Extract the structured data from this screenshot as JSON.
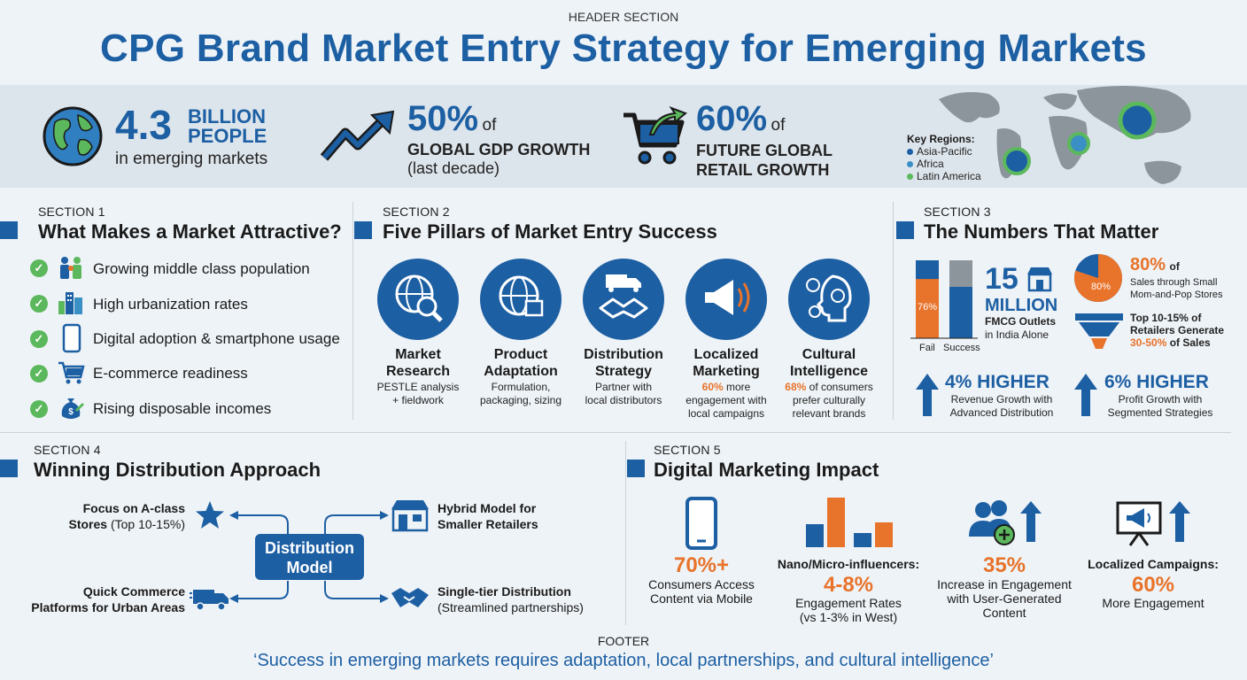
{
  "header": {
    "label": "HEADER SECTION",
    "title": "CPG Brand Market Entry Strategy for Emerging Markets"
  },
  "stats": {
    "people": {
      "number": "4.3",
      "unit_line1": "BILLION",
      "unit_line2": "PEOPLE",
      "caption": "in emerging markets"
    },
    "gdp": {
      "number": "50%",
      "of": "of",
      "bold": "GLOBAL GDP GROWTH",
      "caption": "(last decade)"
    },
    "retail": {
      "number": "60%",
      "of": "of",
      "bold_line1": "FUTURE GLOBAL",
      "bold_line2": "RETAIL GROWTH"
    },
    "regions": {
      "title": "Key Regions:",
      "items": [
        {
          "label": "Asia-Pacific",
          "color": "#1d5fa3"
        },
        {
          "label": "Africa",
          "color": "#3a8fc4"
        },
        {
          "label": "Latin America",
          "color": "#5cb85c"
        }
      ]
    }
  },
  "section1": {
    "label": "SECTION 1",
    "title": "What Makes a Market Attractive?",
    "items": [
      {
        "label": "Growing middle class population",
        "icon": "family-icon"
      },
      {
        "label": "High urbanization rates",
        "icon": "city-icon"
      },
      {
        "label": "Digital adoption & smartphone usage",
        "icon": "smartphone-icon"
      },
      {
        "label": "E-commerce readiness",
        "icon": "cart-icon"
      },
      {
        "label": "Rising disposable incomes",
        "icon": "money-icon"
      }
    ]
  },
  "section2": {
    "label": "SECTION 2",
    "title": "Five Pillars of Market Entry Success",
    "pillars": [
      {
        "title_1": "Market",
        "title_2": "Research",
        "desc_1": "PESTLE analysis",
        "desc_2": "+ fieldwork",
        "desc_3": "",
        "highlight": "",
        "icon": "globe-search-icon"
      },
      {
        "title_1": "Product",
        "title_2": "Adaptation",
        "desc_1": "Formulation,",
        "desc_2": "packaging, sizing",
        "desc_3": "",
        "highlight": "",
        "icon": "globe-package-icon"
      },
      {
        "title_1": "Distribution",
        "title_2": "Strategy",
        "desc_1": "Partner with",
        "desc_2": "local distributors",
        "desc_3": "",
        "highlight": "",
        "icon": "truck-handshake-icon"
      },
      {
        "title_1": "Localized",
        "title_2": "Marketing",
        "highlight": "60%",
        "desc_1": " more",
        "desc_2": "engagement with",
        "desc_3": "local campaigns",
        "icon": "megaphone-icon"
      },
      {
        "title_1": "Cultural",
        "title_2": "Intelligence",
        "highlight": "68%",
        "desc_1": " of consumers",
        "desc_2": "prefer culturally",
        "desc_3": "relevant brands",
        "icon": "head-culture-icon"
      }
    ]
  },
  "section3": {
    "label": "SECTION 3",
    "title": "The Numbers That Matter",
    "bar_chart": {
      "labels": [
        "Fail",
        "Success"
      ],
      "fail_value_label": "76%",
      "fail_fraction": 0.76
    },
    "outlets": {
      "number": "15",
      "unit": "MILLION",
      "caption_1": "FMCG Outlets",
      "caption_2": "in India Alone"
    },
    "pie": {
      "label": "80%",
      "fraction": 0.8,
      "big": "80%",
      "of": "of",
      "caption_1": "Sales through Small",
      "caption_2": "Mom-and-Pop Stores"
    },
    "funnel": {
      "line1": "Top 10-15% of",
      "line2": "Retailers Generate",
      "line3": "30-50%",
      "line3_rest": " of Sales"
    },
    "revenue": {
      "big": "4% HIGHER",
      "caption_1": "Revenue Growth with",
      "caption_2": "Advanced Distribution"
    },
    "profit": {
      "big": "6% HIGHER",
      "caption_1": "Profit Growth with",
      "caption_2": "Segmented Strategies"
    }
  },
  "section4": {
    "label": "SECTION 4",
    "title": "Winning Distribution Approach",
    "center_1": "Distribution",
    "center_2": "Model",
    "nodes": {
      "a_class_1": "Focus on A-class",
      "a_class_2": "Stores (Top 10-15%)",
      "quick_1": "Quick Commerce",
      "quick_2": "Platforms for Urban Areas",
      "hybrid_1": "Hybrid Model for",
      "hybrid_2": "Smaller Retailers",
      "single_1": "Single-tier Distribution",
      "single_2": "(Streamlined partnerships)"
    }
  },
  "section5": {
    "label": "SECTION 5",
    "title": "Digital Marketing Impact",
    "mobile": {
      "big": "70%+",
      "caption_1": "Consumers Access",
      "caption_2": "Content via Mobile"
    },
    "influencers": {
      "title": "Nano/Micro-influencers:",
      "big": "4-8%",
      "caption_1": "Engagement Rates",
      "caption_2": "(vs 1-3% in West)"
    },
    "ugc": {
      "big": "35%",
      "caption_1": "Increase in Engagement",
      "caption_2": "with User-Generated",
      "caption_3": "Content"
    },
    "localized": {
      "title": "Localized Campaigns:",
      "big": "60%",
      "caption_1": "More Engagement"
    }
  },
  "footer": {
    "label": "FOOTER",
    "quote": "‘Success in emerging markets requires adaptation, local partnerships, and cultural intelligence’"
  },
  "colors": {
    "blue": "#1d5fa3",
    "orange": "#e8732a",
    "green": "#5cb85c",
    "background": "#eef3f7"
  }
}
